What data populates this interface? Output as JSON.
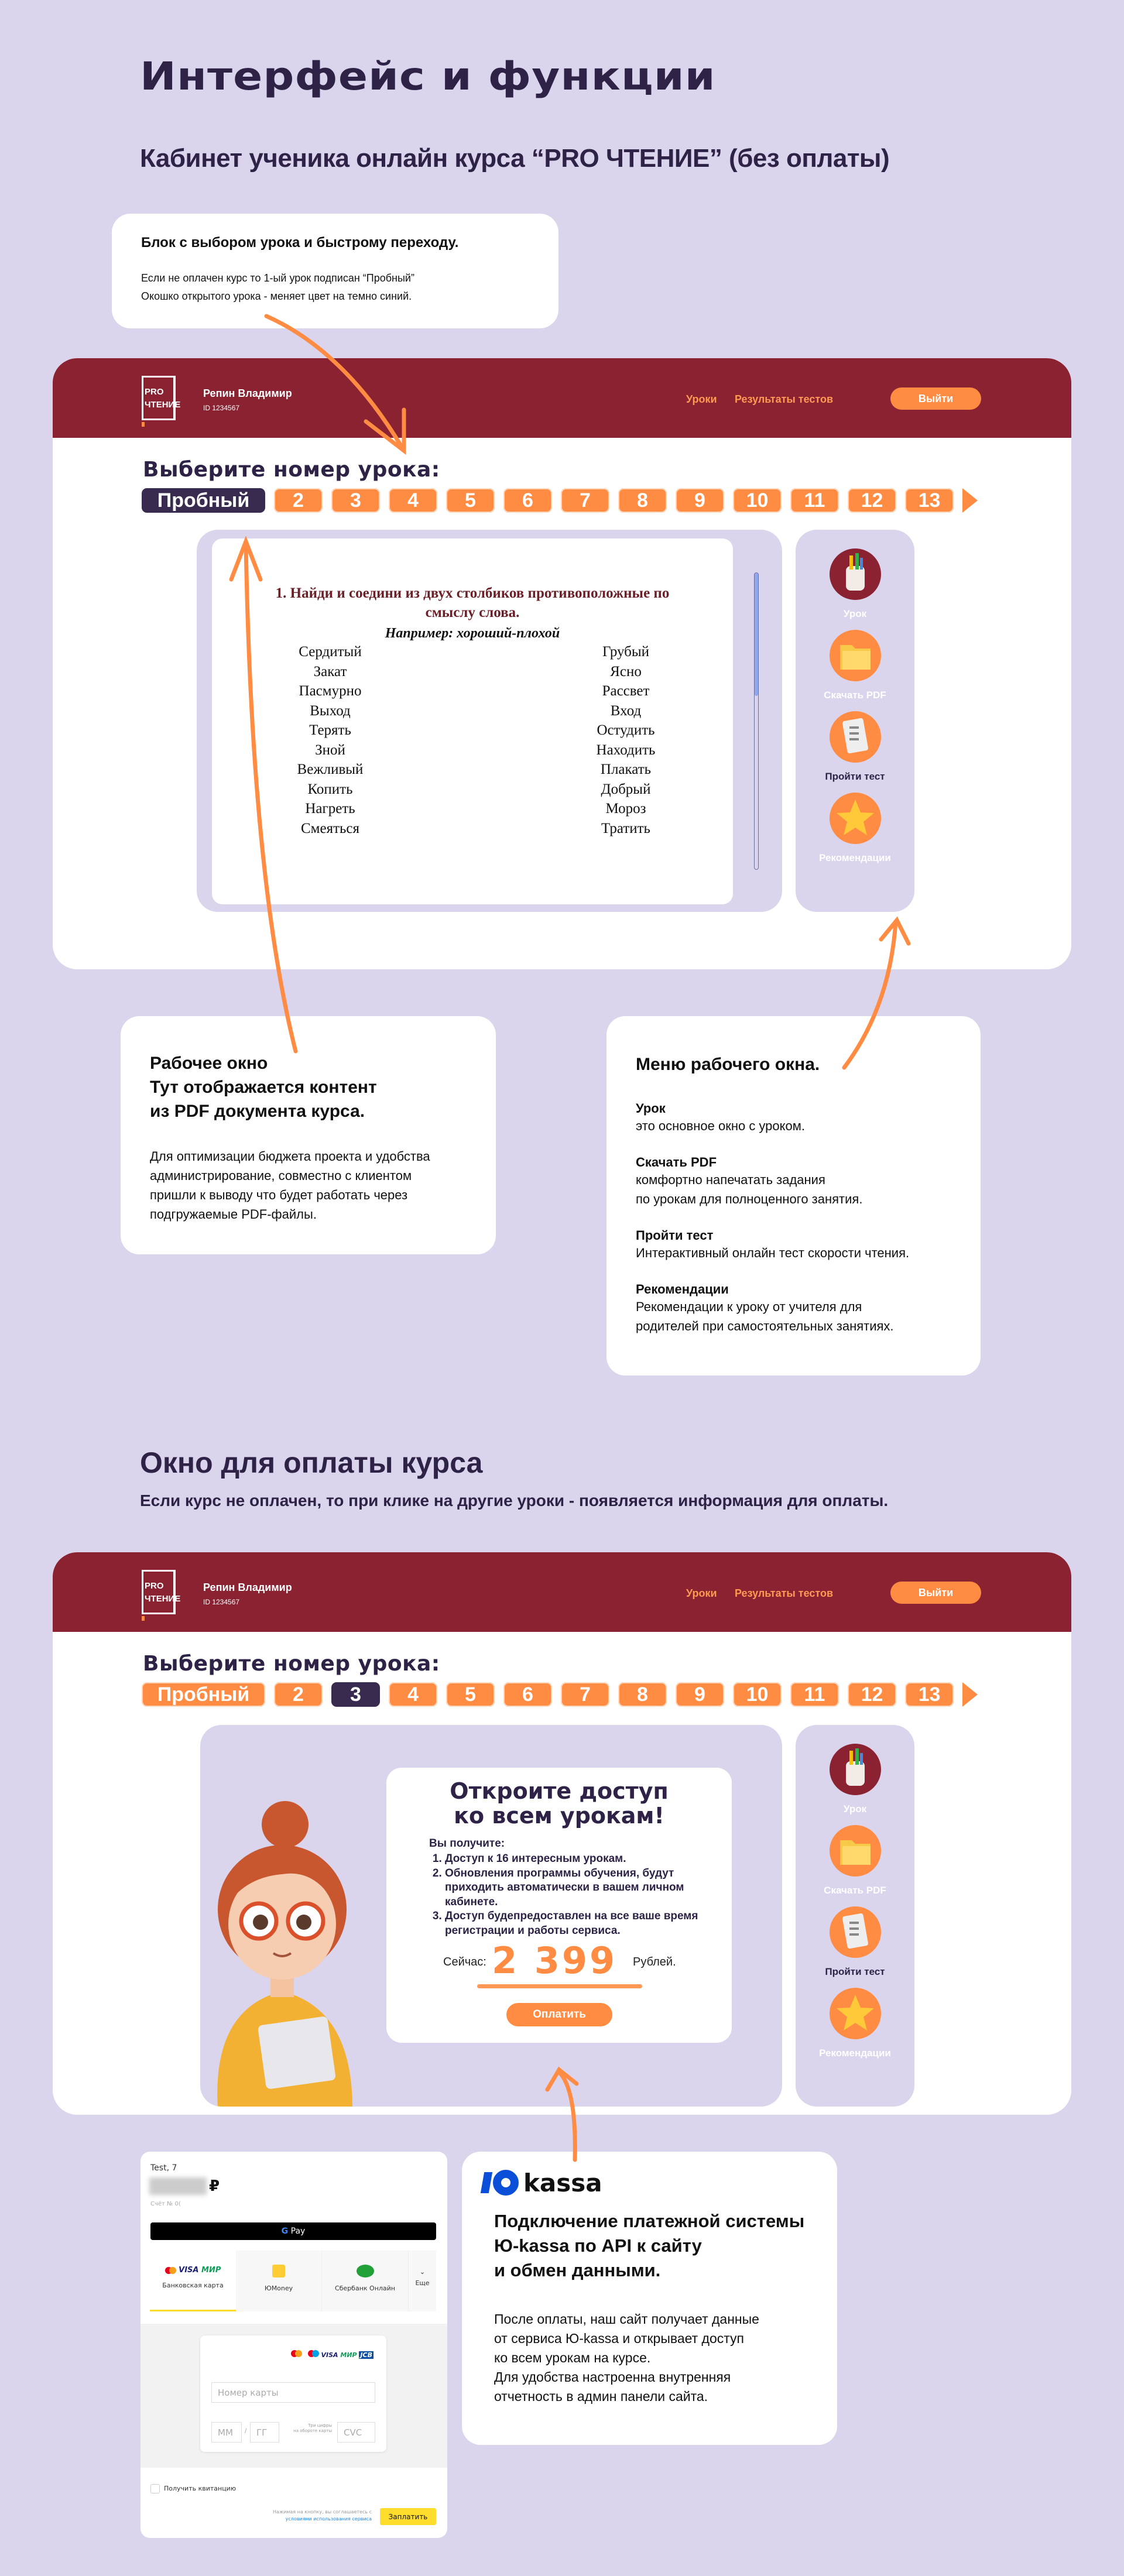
{
  "colors": {
    "background": "#dad4ec",
    "header": "#8a2232",
    "accent": "#ff8c42",
    "active": "#392a4f",
    "heading": "#2e2346"
  },
  "page": {
    "title": "Интерфейс и функции",
    "subtitle": "Кабинет ученика онлайн курса “PRO ЧТЕНИЕ” (без оплаты)"
  },
  "callout_lessons": {
    "title": "Блок с выбором урока и быстрому переходу.",
    "line1": "Если не оплачен курс то 1-ый урок подписан “Пробный”",
    "line2": "Окошко открытого урока - меняет цвет на темно синий."
  },
  "app": {
    "logo_text": [
      "PRO",
      "ЧТЕНИЕ"
    ],
    "user_name": "Репин Владимир",
    "user_id": "ID 1234567",
    "nav": [
      "Уроки",
      "Результаты тестов"
    ],
    "logout": "Выйти",
    "pick_lesson": "Выберите номер урока:",
    "lessons": [
      "Пробный",
      "2",
      "3",
      "4",
      "5",
      "6",
      "7",
      "8",
      "9",
      "10",
      "11",
      "12",
      "13"
    ],
    "sidebar": [
      {
        "label": "Урок",
        "icon": "pencil-cup-icon"
      },
      {
        "label": "Скачать PDF",
        "icon": "folder-icon"
      },
      {
        "label": "Пройти тест",
        "icon": "test-sheet-icon"
      },
      {
        "label": "Рекомендации",
        "icon": "star-icon"
      }
    ]
  },
  "window1": {
    "active_lesson": "Пробный"
  },
  "window2": {
    "active_lesson": "3"
  },
  "pdf": {
    "heading1": "1. Найди и соедини из двух столбиков противоположные по",
    "heading2": "смыслу слова.",
    "example": "Например: хороший-плохой",
    "left": [
      "Сердитый",
      "Закат",
      "Пасмурно",
      "Выход",
      "Терять",
      "Зной",
      "Вежливый",
      "Копить",
      "Нагреть",
      "Смеяться"
    ],
    "right": [
      "Грубый",
      "Ясно",
      "Рассвет",
      "Вход",
      "Остудить",
      "Находить",
      "Плакать",
      "Добрый",
      "Мороз",
      "Тратить"
    ]
  },
  "callout_window": {
    "title": [
      "Рабочее окно",
      "Тут отображается контент",
      "из PDF документа курса."
    ],
    "body": [
      "Для оптимизации бюджета проекта и удобства",
      "администрирование, совместно с клиентом",
      "пришли к выводу что будет работать через",
      "подгружаемые PDF-файлы."
    ]
  },
  "callout_menu": {
    "title": "Меню рабочего окна.",
    "items": [
      {
        "name": "Урок",
        "desc": [
          "это основное окно с уроком."
        ]
      },
      {
        "name": "Скачать PDF",
        "desc": [
          "комфортно напечатать задания",
          "по урокам для полноценного занятия."
        ]
      },
      {
        "name": "Пройти тест",
        "desc": [
          "Интерактивный онлайн тест скорости чтения."
        ]
      },
      {
        "name": "Рекомендации",
        "desc": [
          "Рекомендации к уроку от учителя для",
          "родителей при самостоятельных занятиях."
        ]
      }
    ]
  },
  "section2": {
    "title": "Окно для оплаты курса",
    "subtitle": "Если курс не оплачен, то при клике на другие уроки - появляется информация для оплаты."
  },
  "paywall": {
    "title1": "Откроите доступ",
    "title2": "ко всем урокам!",
    "intro": "Вы получите:",
    "items": [
      [
        "Доступ к 16 интересным урокам."
      ],
      [
        "Обновления программы обучения, будут",
        "приходить автоматически в вашем личном",
        "кабинете."
      ],
      [
        "Доступ будепредоставлен на все ваше время",
        "регистрации и работы сервиса."
      ]
    ],
    "now_label": "Сейчас:",
    "price": "2 399",
    "currency": "Рублей.",
    "pay_button": "Оплатить"
  },
  "checkout": {
    "shop": "Test, 7",
    "currency_sign": "₽",
    "invoice": "Счёт № 0(",
    "gpay": "Pay",
    "tabs": [
      "Банковская карта",
      "ЮMoney",
      "Сбербанк Онлайн",
      "Еще"
    ],
    "card_logos": [
      "VISA",
      "МИР",
      "JCB"
    ],
    "card_number_placeholder": "Номер карты",
    "mm_placeholder": "ММ",
    "yy_placeholder": "ГГ",
    "cvc_hint": [
      "Три цифры",
      "на обороте карты"
    ],
    "cvc_placeholder": "CVC",
    "receipt": "Получить квитанцию",
    "terms1": "Нажимая на кнопку, вы соглашаетесь с",
    "terms_link": "условиями использования сервиса",
    "pay_button": "Заплатить"
  },
  "yookassa": {
    "logo": "ю kassa",
    "title": [
      "Подключение платежной системы",
      "Ю-kassa по API к сайту",
      "и обмен данными."
    ],
    "body": [
      "После оплаты, наш сайт получает данные",
      "от сервиса Ю-kassa и открывает доступ",
      "ко всем урокам на курсе.",
      "Для удобства настроенна внутренняя",
      "отчетность в админ панели сайта."
    ]
  }
}
